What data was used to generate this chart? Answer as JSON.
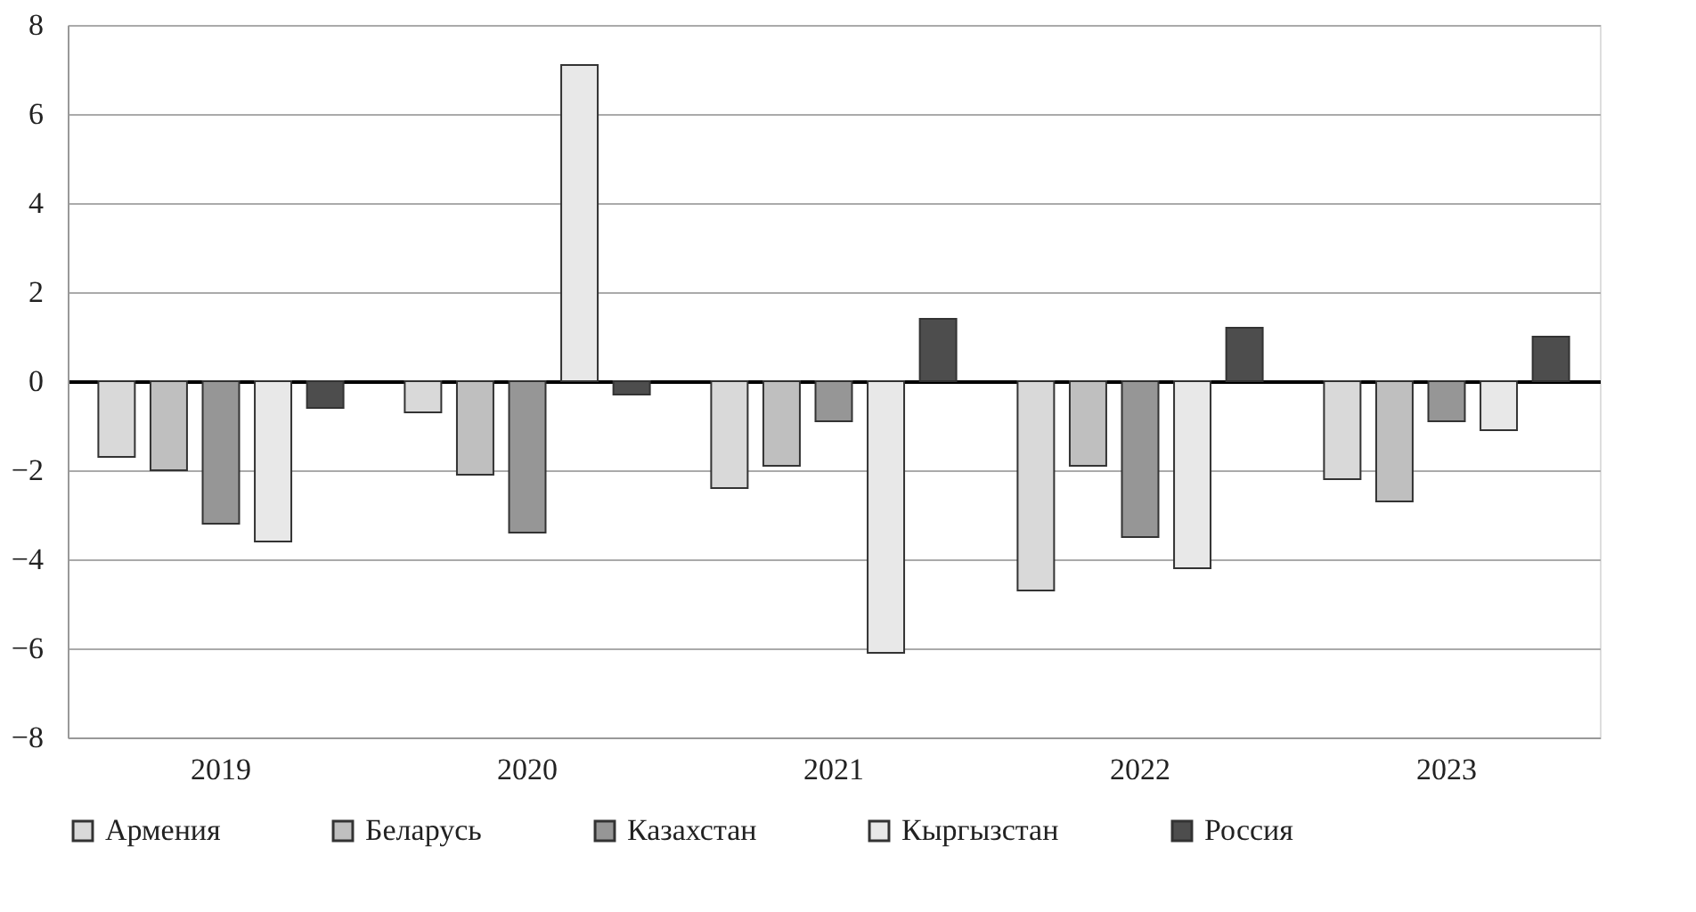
{
  "chart_data": {
    "type": "bar",
    "categories": [
      "2019",
      "2020",
      "2021",
      "2022",
      "2023"
    ],
    "series": [
      {
        "name": "Армения",
        "color": "#d9d9d9",
        "values": [
          -1.7,
          -0.7,
          -2.4,
          -4.7,
          -2.2
        ]
      },
      {
        "name": "Беларусь",
        "color": "#bfbfbf",
        "values": [
          -2.0,
          -2.1,
          -1.9,
          -1.9,
          -2.7
        ]
      },
      {
        "name": "Казахстан",
        "color": "#969696",
        "values": [
          -3.2,
          -3.4,
          -0.9,
          -3.5,
          -0.9
        ]
      },
      {
        "name": "Кыргызстан",
        "color": "#e8e8e8",
        "values": [
          -3.6,
          7.1,
          -6.1,
          -4.2,
          -1.1
        ]
      },
      {
        "name": "Россия",
        "color": "#4d4d4d",
        "values": [
          -0.6,
          -0.3,
          1.4,
          1.2,
          1.0
        ]
      }
    ],
    "ylim": [
      -8,
      8
    ],
    "yticks": [
      -8,
      -6,
      -4,
      -2,
      0,
      2,
      4,
      6,
      8
    ],
    "grid": "y",
    "legend": "bottom"
  }
}
